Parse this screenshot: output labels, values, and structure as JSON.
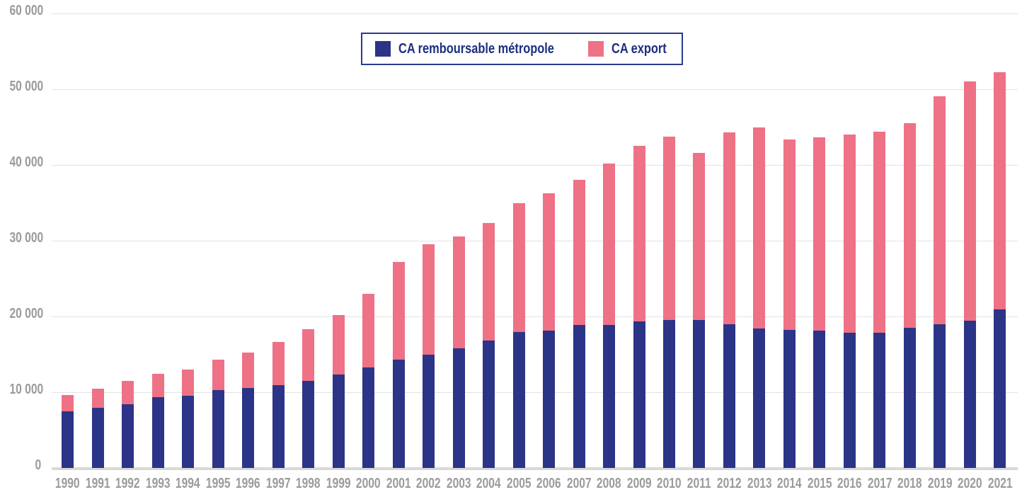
{
  "chart_data": {
    "type": "bar",
    "stacked": true,
    "title": "",
    "xlabel": "",
    "ylabel": "",
    "grid": "horizontal",
    "legend_position": "top-center",
    "ylim": [
      0,
      60000
    ],
    "ytick_step": 10000,
    "ytick_labels": [
      "0",
      "10 000",
      "20 000",
      "30 000",
      "40 000",
      "50 000",
      "60 000"
    ],
    "categories": [
      "1990",
      "1991",
      "1992",
      "1993",
      "1994",
      "1995",
      "1996",
      "1997",
      "1998",
      "1999",
      "2000",
      "2001",
      "2002",
      "2003",
      "2004",
      "2005",
      "2006",
      "2007",
      "2008",
      "2009",
      "2010",
      "2011",
      "2012",
      "2013",
      "2014",
      "2015",
      "2016",
      "2017",
      "2018",
      "2019",
      "2020",
      "2021"
    ],
    "series": [
      {
        "name": "CA remboursable métropole",
        "color": "#2b3487",
        "values": [
          7500,
          7900,
          8400,
          9300,
          9500,
          10300,
          10600,
          10900,
          11500,
          12300,
          13300,
          14300,
          14900,
          15800,
          16800,
          17900,
          18100,
          18900,
          18900,
          19300,
          19500,
          19500,
          19000,
          18400,
          18200,
          18100,
          17800,
          17800,
          18500,
          19000,
          19400,
          20900
        ]
      },
      {
        "name": "CA export",
        "color": "#ee7186",
        "values": [
          2100,
          2600,
          3100,
          3100,
          3500,
          4000,
          4600,
          5700,
          6800,
          7900,
          9700,
          12900,
          14600,
          14700,
          15500,
          17000,
          18100,
          19100,
          21300,
          23200,
          24200,
          22100,
          25300,
          26500,
          25100,
          25500,
          26200,
          26600,
          27000,
          30000,
          31600,
          31300
        ]
      }
    ]
  },
  "legend": {
    "items": [
      {
        "label": "CA remboursable métropole",
        "color": "#2b3487"
      },
      {
        "label": "CA export",
        "color": "#ee7186"
      }
    ]
  },
  "colors": {
    "background": "#ffffff",
    "gridline": "#e2e2e2",
    "baseline": "#d8d8d8",
    "axis_text": "#9b9b9b",
    "legend_border": "#2a3a8f",
    "legend_text": "#1d2f82",
    "series_metropole": "#2b3487",
    "series_export": "#ee7186"
  }
}
